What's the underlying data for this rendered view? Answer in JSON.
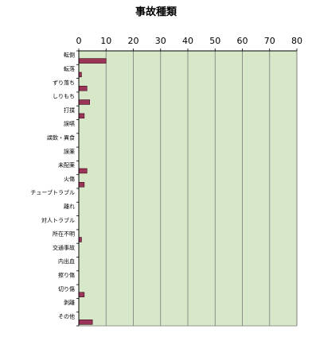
{
  "colors": {
    "plot_background": "#d6e8c8",
    "bar_fill": "#9b3557",
    "bar_stroke": "#3a0a1e",
    "gridline": "#7a7a7a",
    "axis": "#000000"
  },
  "chart_data": {
    "type": "bar",
    "orientation": "horizontal",
    "title": "事故種類",
    "xlim": [
      0,
      80
    ],
    "xticks": [
      "0",
      "10",
      "20",
      "30",
      "40",
      "50",
      "60",
      "70",
      "80"
    ],
    "x_axis_position": "top",
    "grid": "vertical major gridlines",
    "legend": "none",
    "categories": [
      "転倒",
      "転落",
      "ずり落ち",
      "しりもち",
      "打撲",
      "誤嚥",
      "誤飲・異食",
      "誤薬",
      "未配薬",
      "火傷",
      "チューブトラブル",
      "離れ",
      "対人トラブル",
      "所在不明",
      "交通事故",
      "内出血",
      "擦り傷",
      "切り傷",
      "剥離",
      "その他"
    ],
    "values": [
      10,
      1,
      3,
      4,
      2,
      0,
      0,
      0,
      3,
      2,
      0,
      0,
      0,
      1,
      0,
      0,
      0,
      2,
      0,
      5
    ]
  }
}
